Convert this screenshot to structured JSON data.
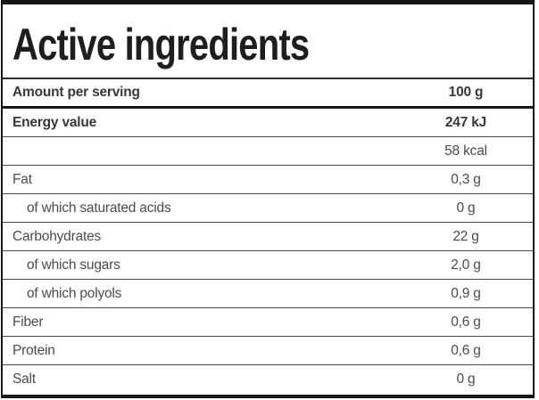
{
  "title": "Active ingredients",
  "table": {
    "header": {
      "label": "Amount per serving",
      "value": "100 g"
    },
    "rows": [
      {
        "label": "Energy value",
        "value": "247 kJ"
      },
      {
        "label": "",
        "value": "58 kcal"
      },
      {
        "label": "Fat",
        "value": "0,3 g"
      },
      {
        "label": "of which saturated acids",
        "value": "0 g"
      },
      {
        "label": "Carbohydrates",
        "value": "22 g"
      },
      {
        "label": "of which sugars",
        "value": "2,0 g"
      },
      {
        "label": "of which polyols",
        "value": "0,9 g"
      },
      {
        "label": "Fiber",
        "value": "0,6 g"
      },
      {
        "label": "Protein",
        "value": "0,6 g"
      },
      {
        "label": "Salt",
        "value": "0 g"
      }
    ]
  },
  "colors": {
    "frame": "#161616",
    "title_text": "#1e1e1e",
    "bold_text": "#383838",
    "regular_text": "#4b4b4b",
    "background": "#ffffff"
  }
}
